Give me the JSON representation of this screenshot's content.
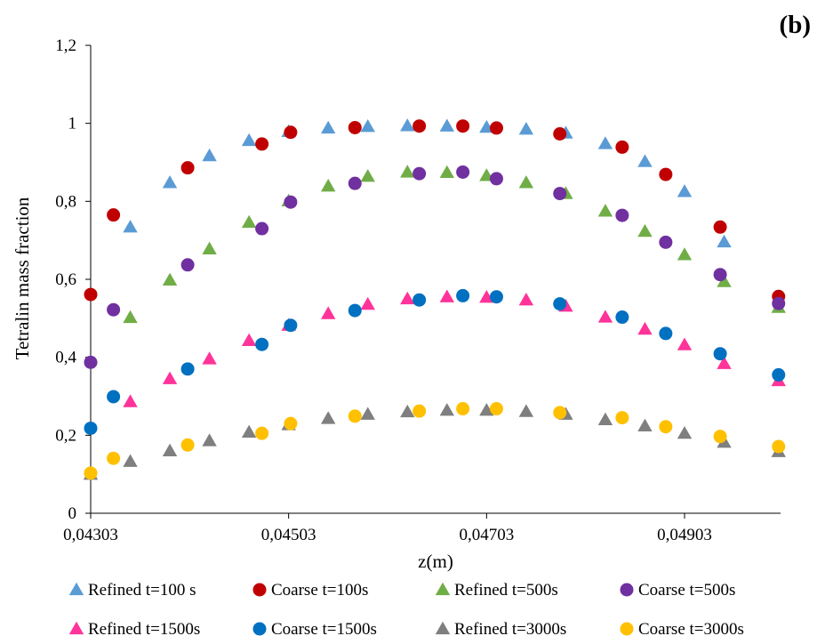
{
  "chart_data": {
    "type": "scatter",
    "panel_label": "(b)",
    "xlabel": "z(m)",
    "ylabel": "Tetralin mass fraction",
    "xlim": [
      0.04303,
      0.05
    ],
    "ylim": [
      0,
      1.2
    ],
    "x_ticks": [
      {
        "value": 0.04303,
        "label": "0,04303"
      },
      {
        "value": 0.04503,
        "label": "0,04503"
      },
      {
        "value": 0.04703,
        "label": "0,04703"
      },
      {
        "value": 0.04903,
        "label": "0,04903"
      }
    ],
    "y_ticks": [
      {
        "value": 0,
        "label": "0"
      },
      {
        "value": 0.2,
        "label": "0,2"
      },
      {
        "value": 0.4,
        "label": "0,4"
      },
      {
        "value": 0.6,
        "label": "0,6"
      },
      {
        "value": 0.8,
        "label": "0,8"
      },
      {
        "value": 1.0,
        "label": "1"
      },
      {
        "value": 1.2,
        "label": "1,2"
      }
    ],
    "grid": false,
    "legend_position": "bottom",
    "series": [
      {
        "name": "Refined t=100 s",
        "marker": "triangle",
        "color": "#5B9BD5",
        "x": [
          0.04343,
          0.04383,
          0.04423,
          0.04463,
          0.04503,
          0.04543,
          0.04583,
          0.04623,
          0.04663,
          0.04703,
          0.04743,
          0.04783,
          0.04823,
          0.04863,
          0.04903,
          0.04943
        ],
        "y": [
          0.734,
          0.848,
          0.917,
          0.956,
          0.979,
          0.988,
          0.992,
          0.994,
          0.993,
          0.99,
          0.985,
          0.975,
          0.948,
          0.902,
          0.825,
          0.696
        ]
      },
      {
        "name": "Coarse t=100s",
        "marker": "circle",
        "color": "#C00000",
        "x": [
          0.04303,
          0.04326,
          0.04401,
          0.04476,
          0.04505,
          0.0457,
          0.04635,
          0.04679,
          0.04713,
          0.04777,
          0.0484,
          0.04884,
          0.04939,
          0.04998
        ],
        "y": [
          0.561,
          0.765,
          0.886,
          0.947,
          0.977,
          0.989,
          0.993,
          0.993,
          0.988,
          0.973,
          0.939,
          0.869,
          0.734,
          0.556
        ]
      },
      {
        "name": "Refined t=500s",
        "marker": "triangle",
        "color": "#70AD47",
        "x": [
          0.04343,
          0.04383,
          0.04423,
          0.04463,
          0.04503,
          0.04543,
          0.04583,
          0.04623,
          0.04663,
          0.04703,
          0.04743,
          0.04783,
          0.04823,
          0.04863,
          0.04903,
          0.04943,
          0.04998
        ],
        "y": [
          0.502,
          0.598,
          0.678,
          0.746,
          0.801,
          0.839,
          0.864,
          0.875,
          0.874,
          0.866,
          0.848,
          0.82,
          0.775,
          0.723,
          0.663,
          0.594,
          0.528
        ]
      },
      {
        "name": "Coarse t=500s",
        "marker": "circle",
        "color": "#7030A0",
        "x": [
          0.04303,
          0.04326,
          0.04401,
          0.04476,
          0.04505,
          0.0457,
          0.04635,
          0.04679,
          0.04713,
          0.04777,
          0.0484,
          0.04884,
          0.04939,
          0.04998
        ],
        "y": [
          0.387,
          0.522,
          0.637,
          0.73,
          0.798,
          0.846,
          0.871,
          0.875,
          0.858,
          0.82,
          0.764,
          0.695,
          0.612,
          0.538
        ]
      },
      {
        "name": "Refined t=1500s",
        "marker": "triangle",
        "color": "#FF3399",
        "x": [
          0.04343,
          0.04383,
          0.04423,
          0.04463,
          0.04503,
          0.04543,
          0.04583,
          0.04623,
          0.04663,
          0.04703,
          0.04743,
          0.04783,
          0.04823,
          0.04863,
          0.04903,
          0.04943,
          0.04998
        ],
        "y": [
          0.286,
          0.345,
          0.396,
          0.443,
          0.482,
          0.512,
          0.536,
          0.55,
          0.555,
          0.554,
          0.547,
          0.531,
          0.503,
          0.472,
          0.432,
          0.384,
          0.34
        ]
      },
      {
        "name": "Coarse t=1500s",
        "marker": "circle",
        "color": "#0070C0",
        "x": [
          0.04303,
          0.04326,
          0.04401,
          0.04476,
          0.04505,
          0.0457,
          0.04635,
          0.04679,
          0.04713,
          0.04777,
          0.0484,
          0.04884,
          0.04939,
          0.04998
        ],
        "y": [
          0.218,
          0.299,
          0.37,
          0.433,
          0.482,
          0.52,
          0.547,
          0.558,
          0.555,
          0.537,
          0.503,
          0.461,
          0.409,
          0.355
        ]
      },
      {
        "name": "Refined t=3000s",
        "marker": "triangle",
        "color": "#7F7F7F",
        "x": [
          0.04303,
          0.04343,
          0.04383,
          0.04423,
          0.04463,
          0.04503,
          0.04543,
          0.04583,
          0.04623,
          0.04663,
          0.04703,
          0.04743,
          0.04783,
          0.04823,
          0.04863,
          0.04903,
          0.04943,
          0.04998
        ],
        "y": [
          0.1,
          0.133,
          0.16,
          0.186,
          0.208,
          0.227,
          0.243,
          0.254,
          0.26,
          0.264,
          0.264,
          0.261,
          0.254,
          0.24,
          0.224,
          0.205,
          0.182,
          0.158
        ]
      },
      {
        "name": "Coarse t=3000s",
        "marker": "circle",
        "color": "#FFC000",
        "x": [
          0.04303,
          0.04326,
          0.04401,
          0.04476,
          0.04505,
          0.0457,
          0.04635,
          0.04679,
          0.04713,
          0.04777,
          0.0484,
          0.04884,
          0.04939,
          0.04998
        ],
        "y": [
          0.103,
          0.141,
          0.175,
          0.205,
          0.23,
          0.249,
          0.262,
          0.268,
          0.268,
          0.258,
          0.245,
          0.222,
          0.197,
          0.171
        ]
      }
    ]
  }
}
